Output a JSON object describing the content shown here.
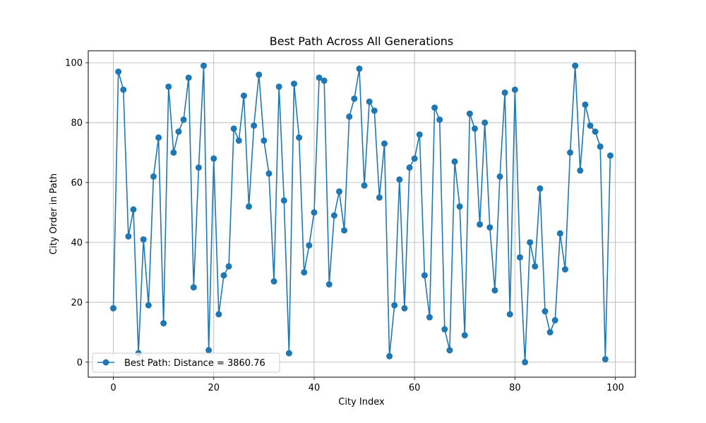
{
  "chart_data": {
    "type": "line",
    "title": "Best Path Across All Generations",
    "xlabel": "City Index",
    "ylabel": "City Order in Path",
    "xlim": [
      -5,
      104
    ],
    "ylim": [
      -5,
      104
    ],
    "xticks": [
      0,
      20,
      40,
      60,
      80,
      100
    ],
    "yticks": [
      0,
      20,
      40,
      60,
      80,
      100
    ],
    "grid": true,
    "legend_position": "lower-left",
    "series": [
      {
        "name": "Best Path: Distance = 3860.76",
        "color": "#1f77b4",
        "marker": "circle",
        "x": [
          0,
          1,
          2,
          3,
          4,
          5,
          6,
          7,
          8,
          9,
          10,
          11,
          12,
          13,
          14,
          15,
          16,
          17,
          18,
          19,
          20,
          21,
          22,
          23,
          24,
          25,
          26,
          27,
          28,
          29,
          30,
          31,
          32,
          33,
          34,
          35,
          36,
          37,
          38,
          39,
          40,
          41,
          42,
          43,
          44,
          45,
          46,
          47,
          48,
          49,
          50,
          51,
          52,
          53,
          54,
          55,
          56,
          57,
          58,
          59,
          60,
          61,
          62,
          63,
          64,
          65,
          66,
          67,
          68,
          69,
          70,
          71,
          72,
          73,
          74,
          75,
          76,
          77,
          78,
          79,
          80,
          81,
          82,
          83,
          84,
          85,
          86,
          87,
          88,
          89,
          90,
          91,
          92,
          93,
          94,
          95,
          96,
          97,
          98,
          99
        ],
        "values": [
          18,
          97,
          91,
          42,
          51,
          3,
          41,
          19,
          62,
          75,
          13,
          92,
          70,
          77,
          81,
          95,
          25,
          65,
          99,
          4,
          68,
          16,
          29,
          32,
          78,
          74,
          89,
          52,
          79,
          96,
          74,
          63,
          27,
          92,
          54,
          3,
          93,
          75,
          30,
          39,
          50,
          95,
          94,
          26,
          49,
          57,
          44,
          82,
          88,
          98,
          59,
          87,
          84,
          55,
          73,
          2,
          19,
          61,
          18,
          65,
          68,
          76,
          29,
          15,
          85,
          81,
          11,
          4,
          67,
          52,
          9,
          83,
          78,
          46,
          80,
          45,
          24,
          62,
          90,
          16,
          91,
          35,
          0,
          40,
          32,
          58,
          17,
          10,
          14,
          43,
          31,
          70,
          99,
          64,
          86,
          79,
          77,
          72,
          1,
          69
        ]
      }
    ]
  }
}
